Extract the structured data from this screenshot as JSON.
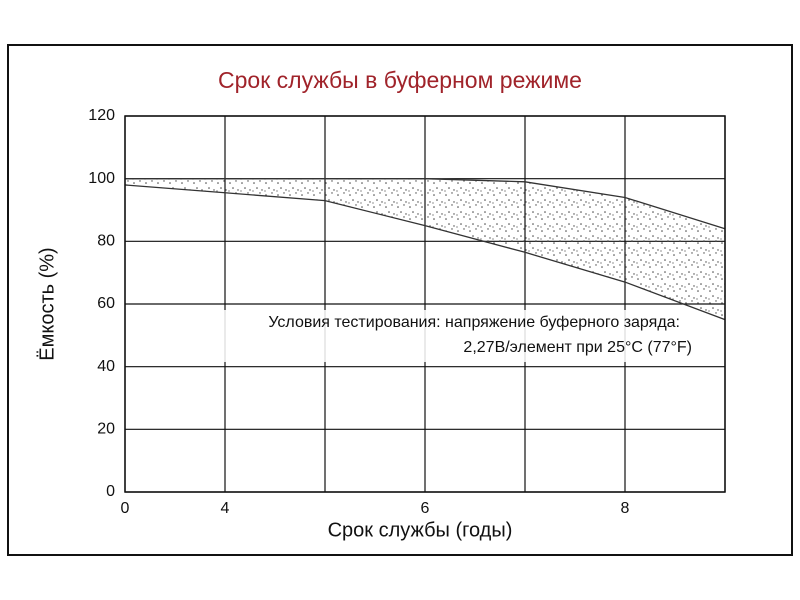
{
  "chart_data": {
    "type": "band",
    "title": "Срок службы в буферном режиме",
    "x_label": "Срок службы (годы)",
    "y_label": "Ёмкость (%)",
    "annotations": [
      "Условия тестирования: напряжение буферного заряда:",
      "2,27В/элемент при 25°С (77°F)"
    ],
    "categories": [
      "0",
      "4",
      null,
      "6",
      null,
      "8",
      null
    ],
    "series": [
      {
        "color": "#333333",
        "values": [
          100,
          100,
          100,
          100,
          99,
          94,
          84
        ]
      },
      {
        "color": "#333333",
        "values": [
          98,
          95.5,
          93,
          85,
          76.5,
          67,
          55
        ]
      }
    ],
    "fill": "#bbbbbb",
    "ylim": [
      0,
      120
    ],
    "yticks": [
      0,
      20,
      40,
      60,
      80,
      100,
      120
    ],
    "grid": true
  }
}
